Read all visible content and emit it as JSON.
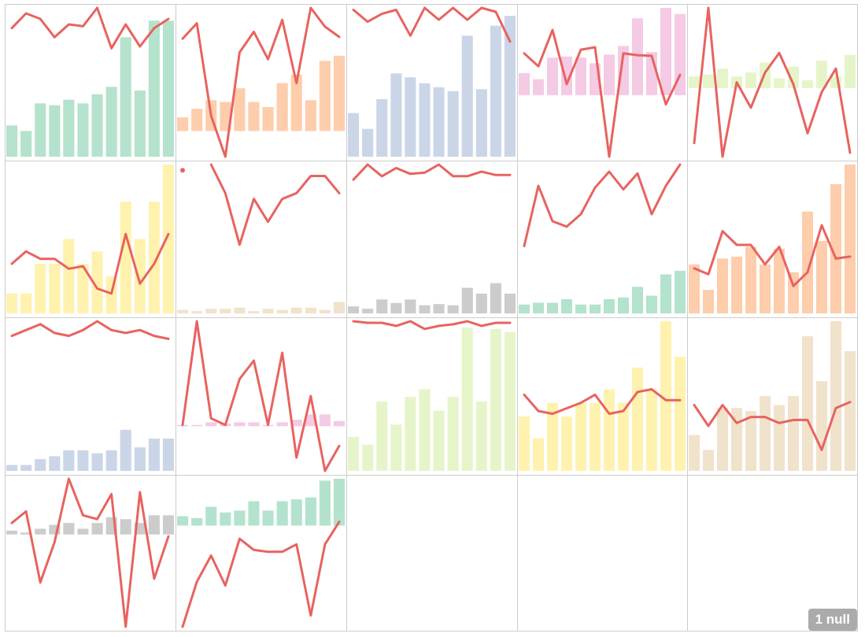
{
  "line_color": "#e8635f",
  "grid_color": "#cccccc",
  "null_badge": {
    "text": "1 null",
    "background": "#ababab"
  },
  "chart_data": [
    {
      "type": "bar+line",
      "bar_color": "#b5e2cc",
      "bars": [
        1.7,
        1.4,
        2.9,
        2.8,
        3.1,
        2.9,
        3.4,
        3.8,
        6.5,
        3.6,
        7.4,
        7.4
      ],
      "line": [
        7.0,
        7.8,
        7.5,
        6.5,
        7.2,
        7.1,
        8.1,
        5.9,
        7.2,
        6.0,
        7.0,
        7.5
      ]
    },
    {
      "type": "bar+line",
      "bar_color": "#fdcdac",
      "bars": [
        0.8,
        1.3,
        1.8,
        1.7,
        2.5,
        1.7,
        1.4,
        2.8,
        3.3,
        1.8,
        4.1,
        4.4
      ],
      "line": [
        5.4,
        6.3,
        0.9,
        -1.5,
        4.6,
        5.8,
        4.2,
        6.5,
        2.8,
        7.2,
        6.1,
        5.5
      ]
    },
    {
      "type": "bar+line",
      "bar_color": "#cbd5e8",
      "bars": [
        2.2,
        1.4,
        2.9,
        4.2,
        4.0,
        3.7,
        3.5,
        3.3,
        6.1,
        3.4,
        6.6,
        7.1
      ],
      "line": [
        7.4,
        6.8,
        7.2,
        7.4,
        6.1,
        7.5,
        6.9,
        7.5,
        6.9,
        7.5,
        7.3,
        5.8
      ]
    },
    {
      "type": "bar+line",
      "bar_color": "#f4cae4",
      "bars": [
        3.6,
        2.6,
        6.1,
        6.3,
        6.1,
        5.2,
        6.6,
        8.0,
        12.5,
        7.0,
        14.2,
        13.2
      ],
      "line": [
        6.8,
        4.7,
        10.6,
        1.8,
        7.4,
        7.8,
        -10.0,
        6.8,
        6.5,
        6.4,
        -1.5,
        3.3
      ]
    },
    {
      "type": "bar+line",
      "bar_color": "#e6f5c9",
      "bars": [
        0.6,
        0.7,
        1.0,
        0.6,
        0.8,
        1.3,
        0.5,
        1.1,
        0.4,
        1.4,
        0.6,
        1.7
      ],
      "line": [
        -2.8,
        4.1,
        -3.5,
        0.3,
        -1.0,
        0.8,
        1.8,
        0.2,
        -2.3,
        -0.2,
        1.0,
        -3.3
      ]
    },
    {
      "type": "bar+line",
      "bar_color": "#fff2ae",
      "bars": [
        0.8,
        0.8,
        2.0,
        2.0,
        3.0,
        2.0,
        2.5,
        1.5,
        4.5,
        3.0,
        4.5,
        6.0
      ],
      "line": [
        2.0,
        2.5,
        2.2,
        2.2,
        1.8,
        1.9,
        1.0,
        0.8,
        3.2,
        1.2,
        2.0,
        3.2
      ]
    },
    {
      "type": "bar+line",
      "bar_color": "#f1e2cc",
      "bars": [
        0.3,
        0.2,
        0.4,
        0.4,
        0.5,
        0.2,
        0.4,
        0.3,
        0.5,
        0.5,
        0.3,
        1.0
      ],
      "line": [
        12.5,
        null,
        13.0,
        10.5,
        6.0,
        10.0,
        8.0,
        10.0,
        10.5,
        12.0,
        12.0,
        10.5
      ]
    },
    {
      "type": "bar+line",
      "bar_color": "#cccccc",
      "bars": [
        0.6,
        0.4,
        1.2,
        0.9,
        1.2,
        0.7,
        0.8,
        0.7,
        2.2,
        1.7,
        2.6,
        1.7
      ],
      "line": [
        11.5,
        12.8,
        11.8,
        12.5,
        12.0,
        12.1,
        12.8,
        11.8,
        11.8,
        12.2,
        11.9,
        11.9
      ]
    },
    {
      "type": "bar+line",
      "bar_color": "#b3e2cd",
      "bars": [
        0.5,
        0.6,
        0.6,
        0.8,
        0.5,
        0.5,
        0.8,
        0.9,
        1.5,
        1.0,
        2.2,
        2.4
      ],
      "line": [
        3.8,
        7.2,
        5.2,
        4.9,
        5.6,
        7.1,
        8.0,
        7.0,
        7.9,
        5.6,
        7.2,
        8.4
      ]
    },
    {
      "type": "bar+line",
      "bar_color": "#fdcdac",
      "bars": [
        2.5,
        1.2,
        2.8,
        2.9,
        3.4,
        2.5,
        3.3,
        2.1,
        5.2,
        3.7,
        6.6,
        7.6
      ],
      "line": [
        2.3,
        2.0,
        4.2,
        3.5,
        3.5,
        2.5,
        3.4,
        1.4,
        2.1,
        4.5,
        2.8,
        2.9
      ]
    },
    {
      "type": "bar+line",
      "bar_color": "#cbd5e8",
      "bars": [
        0.2,
        0.2,
        0.4,
        0.5,
        0.7,
        0.7,
        0.6,
        0.7,
        1.4,
        0.8,
        1.1,
        1.1
      ],
      "line": [
        4.6,
        4.8,
        5.0,
        4.7,
        4.6,
        4.8,
        5.1,
        4.8,
        4.7,
        4.8,
        4.6,
        4.5
      ]
    },
    {
      "type": "bar+line",
      "bar_color": "#f4cae4",
      "bars": [
        0.1,
        0.1,
        0.3,
        0.2,
        0.3,
        0.3,
        0.1,
        0.3,
        0.5,
        0.9,
        0.9,
        0.4
      ],
      "line": [
        0.1,
        8.0,
        0.6,
        0.1,
        3.6,
        5.0,
        0.1,
        5.6,
        -2.4,
        2.3,
        -3.4,
        -1.5
      ]
    },
    {
      "type": "bar+line",
      "bar_color": "#e6f5c9",
      "bars": [
        2.2,
        1.7,
        4.5,
        3.0,
        4.8,
        5.3,
        3.9,
        4.8,
        9.3,
        4.5,
        9.2,
        9.0
      ],
      "line": [
        9.7,
        9.6,
        9.6,
        9.4,
        9.7,
        9.2,
        9.4,
        9.5,
        9.7,
        9.4,
        9.6,
        9.6
      ]
    },
    {
      "type": "bar+line",
      "bar_color": "#fff2ae",
      "bars": [
        2.0,
        1.2,
        2.5,
        2.0,
        2.5,
        2.5,
        3.0,
        2.5,
        3.8,
        3.0,
        5.5,
        4.2
      ],
      "line": [
        2.8,
        2.2,
        2.1,
        2.3,
        2.5,
        2.8,
        2.1,
        2.2,
        2.9,
        3.0,
        2.6,
        2.6
      ]
    },
    {
      "type": "bar+line",
      "bar_color": "#f1e2cc",
      "bars": [
        1.2,
        0.7,
        2.1,
        2.1,
        2.0,
        2.5,
        2.2,
        2.5,
        4.5,
        3.0,
        5.0,
        4.0
      ],
      "line": [
        2.2,
        1.5,
        2.2,
        1.6,
        1.8,
        1.8,
        1.6,
        1.7,
        1.7,
        0.7,
        2.1,
        2.3
      ]
    },
    {
      "type": "bar+line",
      "bar_color": "#cccccc",
      "bars": [
        0.2,
        0.1,
        0.3,
        0.5,
        0.6,
        0.3,
        0.6,
        0.9,
        0.8,
        0.6,
        1.0,
        1.0
      ],
      "line": [
        0.6,
        1.2,
        -2.5,
        -0.4,
        2.9,
        1.0,
        0.8,
        2.1,
        -4.8,
        2.2,
        -2.3,
        -0.1
      ]
    },
    {
      "type": "bar+line",
      "bar_color": "#b3e2cd",
      "bars": [
        0.5,
        0.4,
        1.0,
        0.7,
        0.8,
        1.3,
        0.8,
        1.3,
        1.4,
        1.5,
        2.4,
        2.5
      ],
      "line": [
        -5.4,
        -3.0,
        -1.6,
        -3.2,
        -0.7,
        -1.3,
        -1.4,
        -1.4,
        -1.0,
        -4.8,
        -1.0,
        0.2
      ]
    }
  ]
}
